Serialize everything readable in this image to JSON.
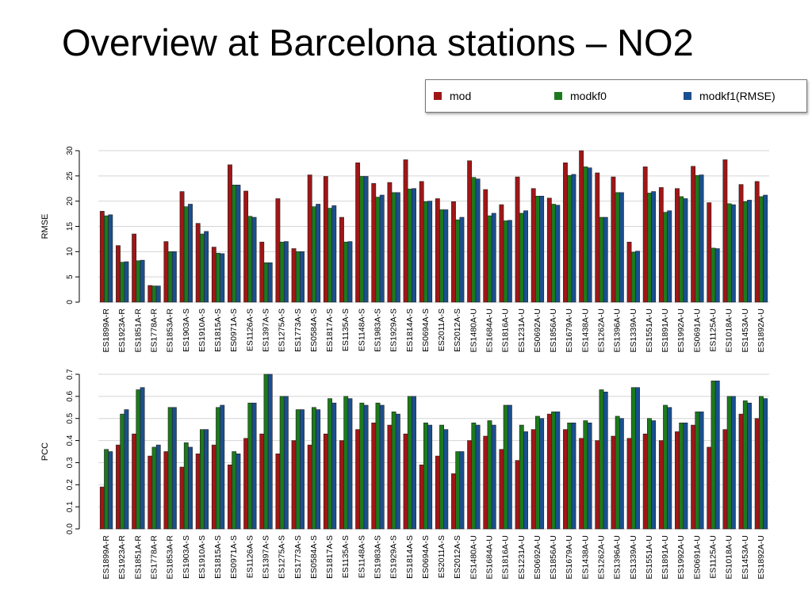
{
  "slide": {
    "title": "Overview at Barcelona stations – NO2"
  },
  "legend": {
    "items": [
      {
        "label": "mod",
        "color": "#a01616"
      },
      {
        "label": "modkf0",
        "color": "#1c7a1c"
      },
      {
        "label": "modkf1(RMSE)",
        "color": "#1a4f8f"
      }
    ]
  },
  "chart_data": [
    {
      "type": "bar",
      "title": "",
      "xlabel": "",
      "ylabel": "RMSE",
      "ylim": [
        0,
        30
      ],
      "yticks": [
        "0",
        "5",
        "10",
        "15",
        "20",
        "25",
        "30"
      ],
      "grid": true,
      "categories": [
        "ES1899A-R",
        "ES1923A-R",
        "ES1851A-R",
        "ES1778A-R",
        "ES1853A-R",
        "ES1903A-S",
        "ES1910A-S",
        "ES1815A-S",
        "ES0971A-S",
        "ES1126A-S",
        "ES1397A-S",
        "ES1275A-S",
        "ES1773A-S",
        "ES0584A-S",
        "ES1817A-S",
        "ES1135A-S",
        "ES1148A-S",
        "ES1983A-S",
        "ES1929A-S",
        "ES1814A-S",
        "ES0694A-S",
        "ES2011A-S",
        "ES2012A-S",
        "ES1480A-U",
        "ES1684A-U",
        "ES1816A-U",
        "ES1231A-U",
        "ES0692A-U",
        "ES1856A-U",
        "ES1679A-U",
        "ES1438A-U",
        "ES1262A-U",
        "ES1396A-U",
        "ES1339A-U",
        "ES1551A-U",
        "ES1891A-U",
        "ES1992A-U",
        "ES0691A-U",
        "ES1125A-U",
        "ES1018A-U",
        "ES1453A-U",
        "ES1892A-U"
      ],
      "series": [
        {
          "name": "mod",
          "color": "#a01616",
          "values": [
            18,
            11.2,
            13.5,
            3.3,
            12,
            21.9,
            15.6,
            10.9,
            27.2,
            22,
            11.9,
            20.5,
            10.6,
            25.2,
            24.9,
            16.8,
            27.6,
            23.5,
            23.7,
            28.2,
            23.9,
            20.5,
            19.9,
            28,
            22.3,
            19.3,
            24.8,
            22.5,
            20.6,
            27.6,
            30.3,
            25.6,
            24.8,
            11.9,
            26.8,
            22.7,
            22.5,
            26.9,
            19.7,
            28.2,
            23.3,
            23.9
          ]
        },
        {
          "name": "modkf0",
          "color": "#1c7a1c",
          "values": [
            17.1,
            7.9,
            8.2,
            3.2,
            10,
            18.9,
            13.5,
            9.7,
            23.2,
            17,
            7.8,
            11.9,
            10,
            18.9,
            18.6,
            11.9,
            24.9,
            20.8,
            21.7,
            22.4,
            19.9,
            18.3,
            16.3,
            24.7,
            17.1,
            16.1,
            17.6,
            21,
            19.4,
            25.1,
            26.8,
            16.8,
            21.7,
            9.9,
            21.6,
            17.8,
            20.9,
            25.1,
            10.7,
            19.5,
            19.9,
            20.9
          ]
        },
        {
          "name": "modkf1(RMSE)",
          "color": "#1a4f8f",
          "values": [
            17.3,
            8,
            8.3,
            3.2,
            10,
            19.4,
            14,
            9.6,
            23.2,
            16.8,
            7.8,
            12,
            10,
            19.4,
            19.1,
            12,
            24.9,
            21.2,
            21.7,
            22.5,
            20,
            18.3,
            16.8,
            24.4,
            17.6,
            16.2,
            18.1,
            21,
            19.2,
            25.3,
            26.6,
            16.8,
            21.7,
            10.1,
            21.9,
            18.1,
            20.5,
            25.2,
            10.6,
            19.3,
            20.2,
            21.2
          ]
        }
      ]
    },
    {
      "type": "bar",
      "title": "",
      "xlabel": "",
      "ylabel": "PCC",
      "ylim": [
        0,
        0.7
      ],
      "yticks": [
        "0.0",
        "0.1",
        "0.2",
        "0.3",
        "0.4",
        "0.5",
        "0.6",
        "0.7"
      ],
      "grid": true,
      "categories": [
        "ES1899A-R",
        "ES1923A-R",
        "ES1851A-R",
        "ES1778A-R",
        "ES1853A-R",
        "ES1903A-S",
        "ES1910A-S",
        "ES1815A-S",
        "ES0971A-S",
        "ES1126A-S",
        "ES1397A-S",
        "ES1275A-S",
        "ES1773A-S",
        "ES0584A-S",
        "ES1817A-S",
        "ES1135A-S",
        "ES1148A-S",
        "ES1983A-S",
        "ES1929A-S",
        "ES1814A-S",
        "ES0694A-S",
        "ES2011A-S",
        "ES2012A-S",
        "ES1480A-U",
        "ES1684A-U",
        "ES1816A-U",
        "ES1231A-U",
        "ES0692A-U",
        "ES1856A-U",
        "ES1679A-U",
        "ES1438A-U",
        "ES1262A-U",
        "ES1396A-U",
        "ES1339A-U",
        "ES1551A-U",
        "ES1891A-U",
        "ES1992A-U",
        "ES0691A-U",
        "ES1125A-U",
        "ES1018A-U",
        "ES1453A-U",
        "ES1892A-U"
      ],
      "series": [
        {
          "name": "mod",
          "color": "#a01616",
          "values": [
            0.19,
            0.38,
            0.43,
            0.33,
            0.35,
            0.28,
            0.34,
            0.38,
            0.29,
            0.41,
            0.43,
            0.34,
            0.4,
            0.38,
            0.43,
            0.4,
            0.45,
            0.48,
            0.47,
            0.43,
            0.29,
            0.33,
            0.25,
            0.4,
            0.42,
            0.36,
            0.31,
            0.45,
            0.52,
            0.45,
            0.41,
            0.4,
            0.42,
            0.41,
            0.43,
            0.4,
            0.44,
            0.47,
            0.37,
            0.45,
            0.52,
            0.5
          ]
        },
        {
          "name": "modkf0",
          "color": "#1c7a1c",
          "values": [
            0.36,
            0.52,
            0.63,
            0.37,
            0.55,
            0.39,
            0.45,
            0.55,
            0.35,
            0.57,
            0.7,
            0.6,
            0.54,
            0.55,
            0.59,
            0.6,
            0.57,
            0.57,
            0.53,
            0.6,
            0.48,
            0.47,
            0.35,
            0.48,
            0.49,
            0.56,
            0.47,
            0.51,
            0.53,
            0.48,
            0.49,
            0.63,
            0.51,
            0.64,
            0.5,
            0.56,
            0.48,
            0.53,
            0.67,
            0.6,
            0.58,
            0.6
          ]
        },
        {
          "name": "modkf1(RMSE)",
          "color": "#1a4f8f",
          "values": [
            0.35,
            0.54,
            0.64,
            0.38,
            0.55,
            0.37,
            0.45,
            0.56,
            0.34,
            0.57,
            0.7,
            0.6,
            0.54,
            0.54,
            0.57,
            0.59,
            0.56,
            0.56,
            0.52,
            0.6,
            0.47,
            0.45,
            0.35,
            0.47,
            0.47,
            0.56,
            0.44,
            0.5,
            0.53,
            0.48,
            0.48,
            0.62,
            0.5,
            0.64,
            0.49,
            0.55,
            0.48,
            0.53,
            0.67,
            0.6,
            0.57,
            0.59
          ]
        }
      ]
    }
  ]
}
